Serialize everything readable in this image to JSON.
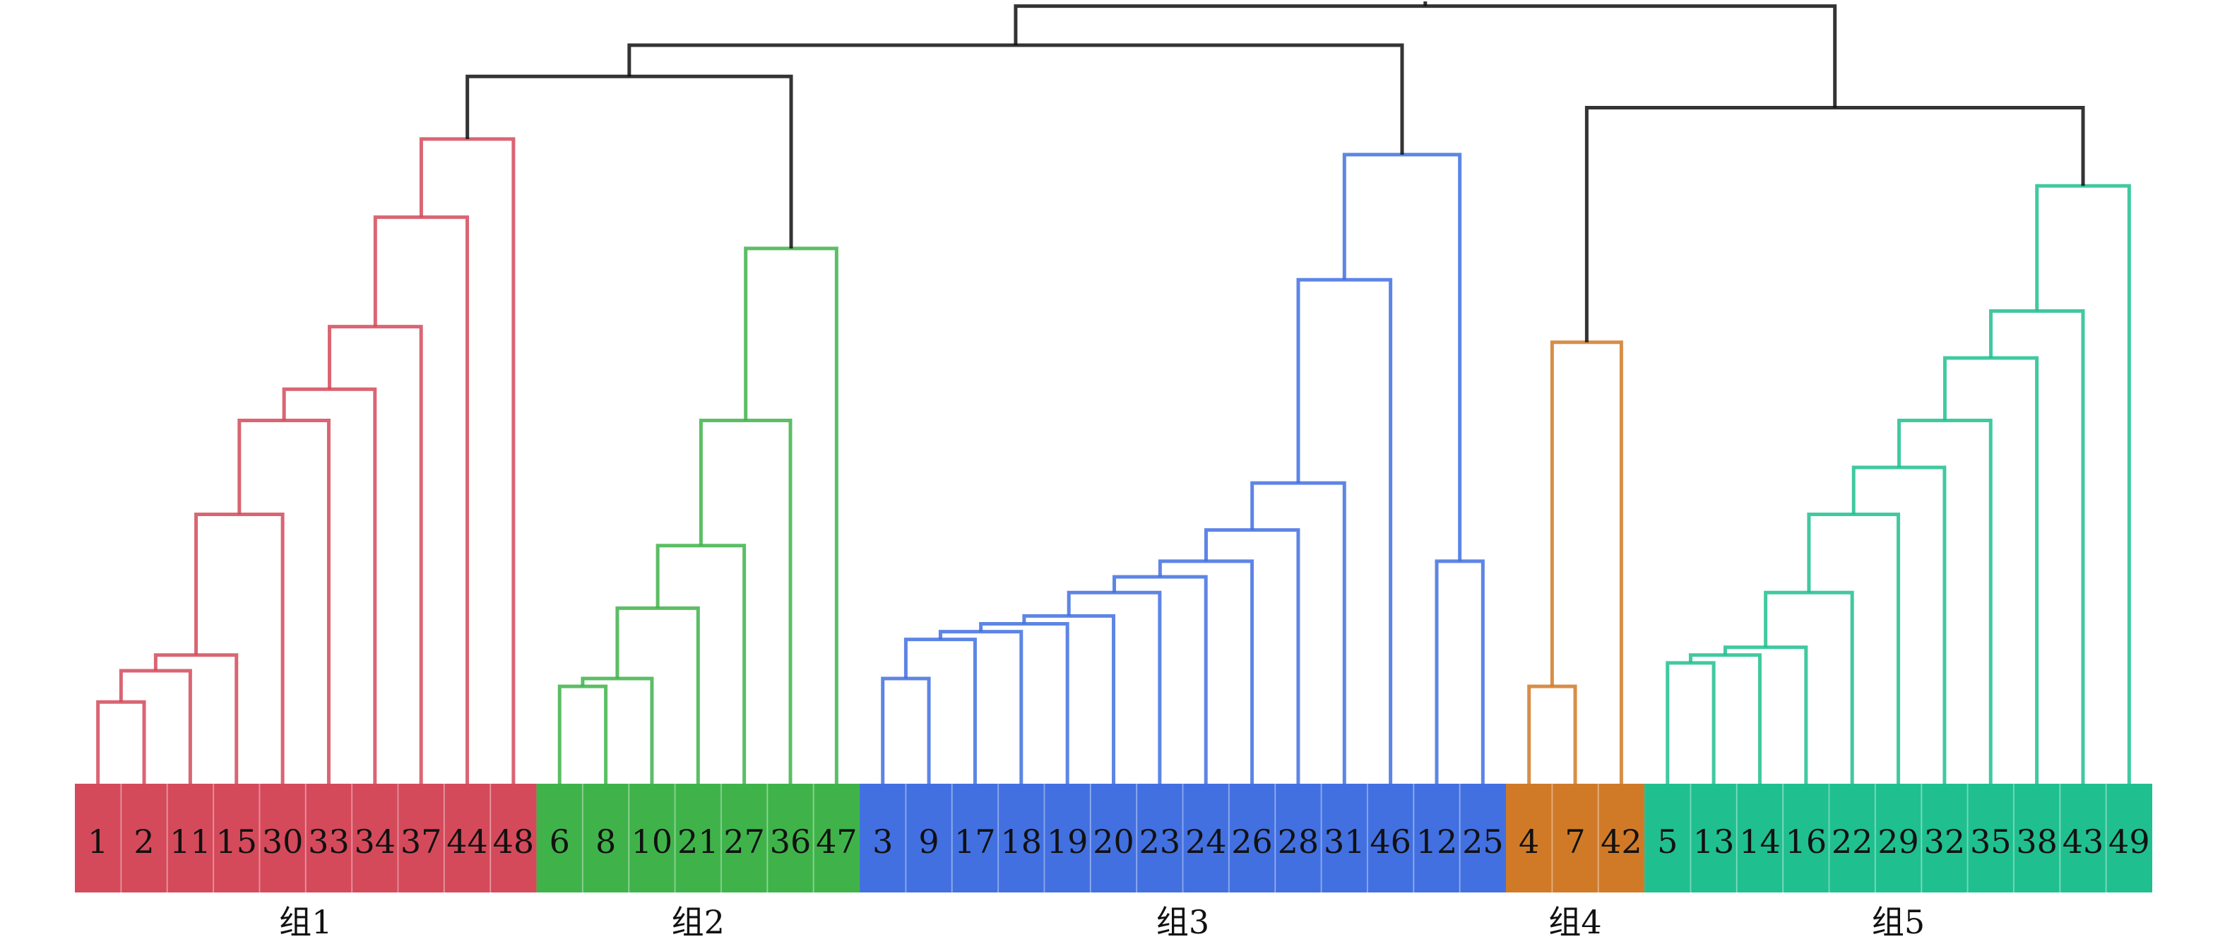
{
  "groups": [
    {
      "label": "组1",
      "color": "#d44a5b",
      "leaves": [
        "1",
        "2",
        "11",
        "15",
        "30",
        "33",
        "34",
        "37",
        "44",
        "48"
      ],
      "merges": [
        [
          "1",
          "2",
          0.05
        ],
        [
          "m0",
          "11",
          0.07
        ],
        [
          "m1",
          "15",
          0.08
        ],
        [
          "m2",
          "30",
          0.17
        ],
        [
          "m3",
          "33",
          0.23
        ],
        [
          "m4",
          "34",
          0.25
        ],
        [
          "m5",
          "37",
          0.29
        ],
        [
          "m6",
          "44",
          0.36
        ],
        [
          "m7",
          "48",
          0.41
        ]
      ]
    },
    {
      "label": "组2",
      "color": "#3fb34a",
      "leaves": [
        "6",
        "8",
        "10",
        "21",
        "27",
        "36",
        "47"
      ],
      "merges": [
        [
          "6",
          "8",
          0.06
        ],
        [
          "m0",
          "10",
          0.065
        ],
        [
          "m1",
          "21",
          0.11
        ],
        [
          "m2",
          "27",
          0.15
        ],
        [
          "m3",
          "36",
          0.23
        ],
        [
          "m4",
          "47",
          0.34
        ]
      ]
    },
    {
      "label": "组3",
      "color": "#4270e0",
      "leaves": [
        "3",
        "9",
        "17",
        "18",
        "19",
        "20",
        "23",
        "24",
        "26",
        "28",
        "31",
        "46",
        "12",
        "25"
      ],
      "merges": [
        [
          "3",
          "9",
          0.065
        ],
        [
          "m0",
          "17",
          0.09
        ],
        [
          "m1",
          "18",
          0.095
        ],
        [
          "m2",
          "19",
          0.1
        ],
        [
          "m3",
          "20",
          0.105
        ],
        [
          "m4",
          "23",
          0.12
        ],
        [
          "m5",
          "24",
          0.13
        ],
        [
          "m6",
          "26",
          0.14
        ],
        [
          "m7",
          "28",
          0.16
        ],
        [
          "m8",
          "31",
          0.19
        ],
        [
          "m9",
          "46",
          0.32
        ],
        [
          "12",
          "25",
          0.14
        ],
        [
          "m10",
          "m11",
          0.4
        ]
      ]
    },
    {
      "label": "组4",
      "color": "#d07a28",
      "leaves": [
        "4",
        "7",
        "42"
      ],
      "merges": [
        [
          "4",
          "7",
          0.06
        ],
        [
          "m0",
          "42",
          0.28
        ]
      ]
    },
    {
      "label": "组5",
      "color": "#20bf8f",
      "leaves": [
        "5",
        "13",
        "14",
        "16",
        "22",
        "29",
        "32",
        "35",
        "38",
        "43",
        "49"
      ],
      "merges": [
        [
          "5",
          "13",
          0.075
        ],
        [
          "m0",
          "14",
          0.08
        ],
        [
          "m1",
          "16",
          0.085
        ],
        [
          "m2",
          "22",
          0.12
        ],
        [
          "m3",
          "29",
          0.17
        ],
        [
          "m4",
          "32",
          0.2
        ],
        [
          "m5",
          "35",
          0.23
        ],
        [
          "m6",
          "38",
          0.27
        ],
        [
          "m7",
          "43",
          0.3
        ],
        [
          "m8",
          "49",
          0.38
        ]
      ]
    }
  ],
  "top_merges": [
    [
      "g0",
      "g1",
      0.45
    ],
    [
      "t0",
      "g2",
      0.47
    ],
    [
      "g3",
      "g4",
      0.43
    ],
    [
      "t1",
      "t2",
      0.495
    ]
  ],
  "top_link_color": "#111111"
}
